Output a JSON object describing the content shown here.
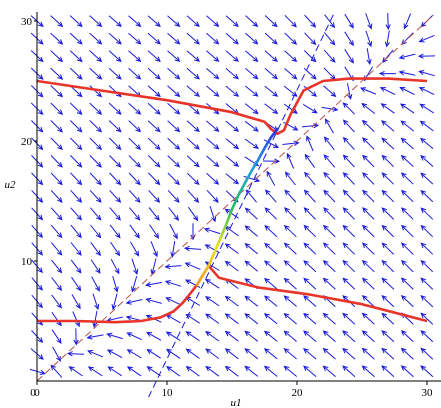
{
  "chart_data": {
    "type": "line",
    "xlabel": "u1",
    "ylabel": "u2",
    "xlim": [
      0,
      30.5
    ],
    "ylim": [
      0,
      30.5
    ],
    "x_ticks": [
      {
        "value": 0,
        "label": "0"
      },
      {
        "value": 10,
        "label": "10"
      },
      {
        "value": 20,
        "label": "20"
      },
      {
        "value": 30,
        "label": "30"
      }
    ],
    "y_ticks": [
      {
        "value": 10,
        "label": "10"
      },
      {
        "value": 20,
        "label": "20"
      },
      {
        "value": 30,
        "label": "30"
      }
    ],
    "grid": false,
    "colors": {
      "field_arrows": "#1a1adb",
      "curve": "#e8352a",
      "dashed_brown": "#b5524a",
      "dashed_blue": "#1a1adb",
      "transition": [
        "#f0a020",
        "#e8e020",
        "#20c060",
        "#20a0e0",
        "#3030e0"
      ]
    },
    "series": [
      {
        "style": "dashed",
        "color": "#b5524a",
        "x": [
          0,
          30.5
        ],
        "y": [
          0,
          30.5
        ]
      },
      {
        "style": "dashed",
        "color": "#1a1adb",
        "x": [
          8.2,
          23.1
        ],
        "y": [
          -2.2,
          31.2
        ]
      },
      {
        "style": "solid",
        "color": "#e8352a",
        "x": [
          0,
          5,
          10,
          15,
          17.5,
          18.0,
          18.5,
          19.0,
          19.5,
          20.5,
          22,
          24,
          27,
          30
        ],
        "y": [
          25.0,
          24.2,
          23.4,
          22.4,
          21.6,
          21.0,
          20.6,
          20.9,
          22.2,
          24.2,
          25.0,
          25.2,
          25.2,
          25.0
        ]
      },
      {
        "style": "solid",
        "color": "#e8352a",
        "x": [
          0,
          3,
          6,
          8,
          9.5,
          10.5,
          11.2,
          11.8,
          12.3,
          12.8,
          13.2,
          14,
          17,
          21,
          25,
          30
        ],
        "y": [
          5.0,
          5.0,
          4.9,
          5.0,
          5.3,
          5.8,
          6.5,
          7.3,
          8.0,
          8.9,
          9.6,
          8.6,
          7.8,
          7.2,
          6.4,
          5.0
        ]
      },
      {
        "style": "solid",
        "color": "gradient",
        "x": [
          12.3,
          12.8,
          13.2,
          13.6,
          14.0,
          14.5,
          15.0,
          15.5,
          16.0,
          16.5,
          17.0,
          17.5,
          18.0,
          18.5
        ],
        "y": [
          8.0,
          8.9,
          9.6,
          10.6,
          11.6,
          12.9,
          14.3,
          15.5,
          16.5,
          17.5,
          18.4,
          19.4,
          20.3,
          21.0
        ]
      }
    ],
    "vector_field": {
      "x_range": [
        0,
        30
      ],
      "y_range": [
        0.8,
        30
      ],
      "nx": 21,
      "ny": 21,
      "fixed_points": [
        [
          1,
          1
        ],
        [
          16,
          16
        ],
        [
          23,
          23
        ]
      ],
      "color": "#1a1adb"
    }
  }
}
